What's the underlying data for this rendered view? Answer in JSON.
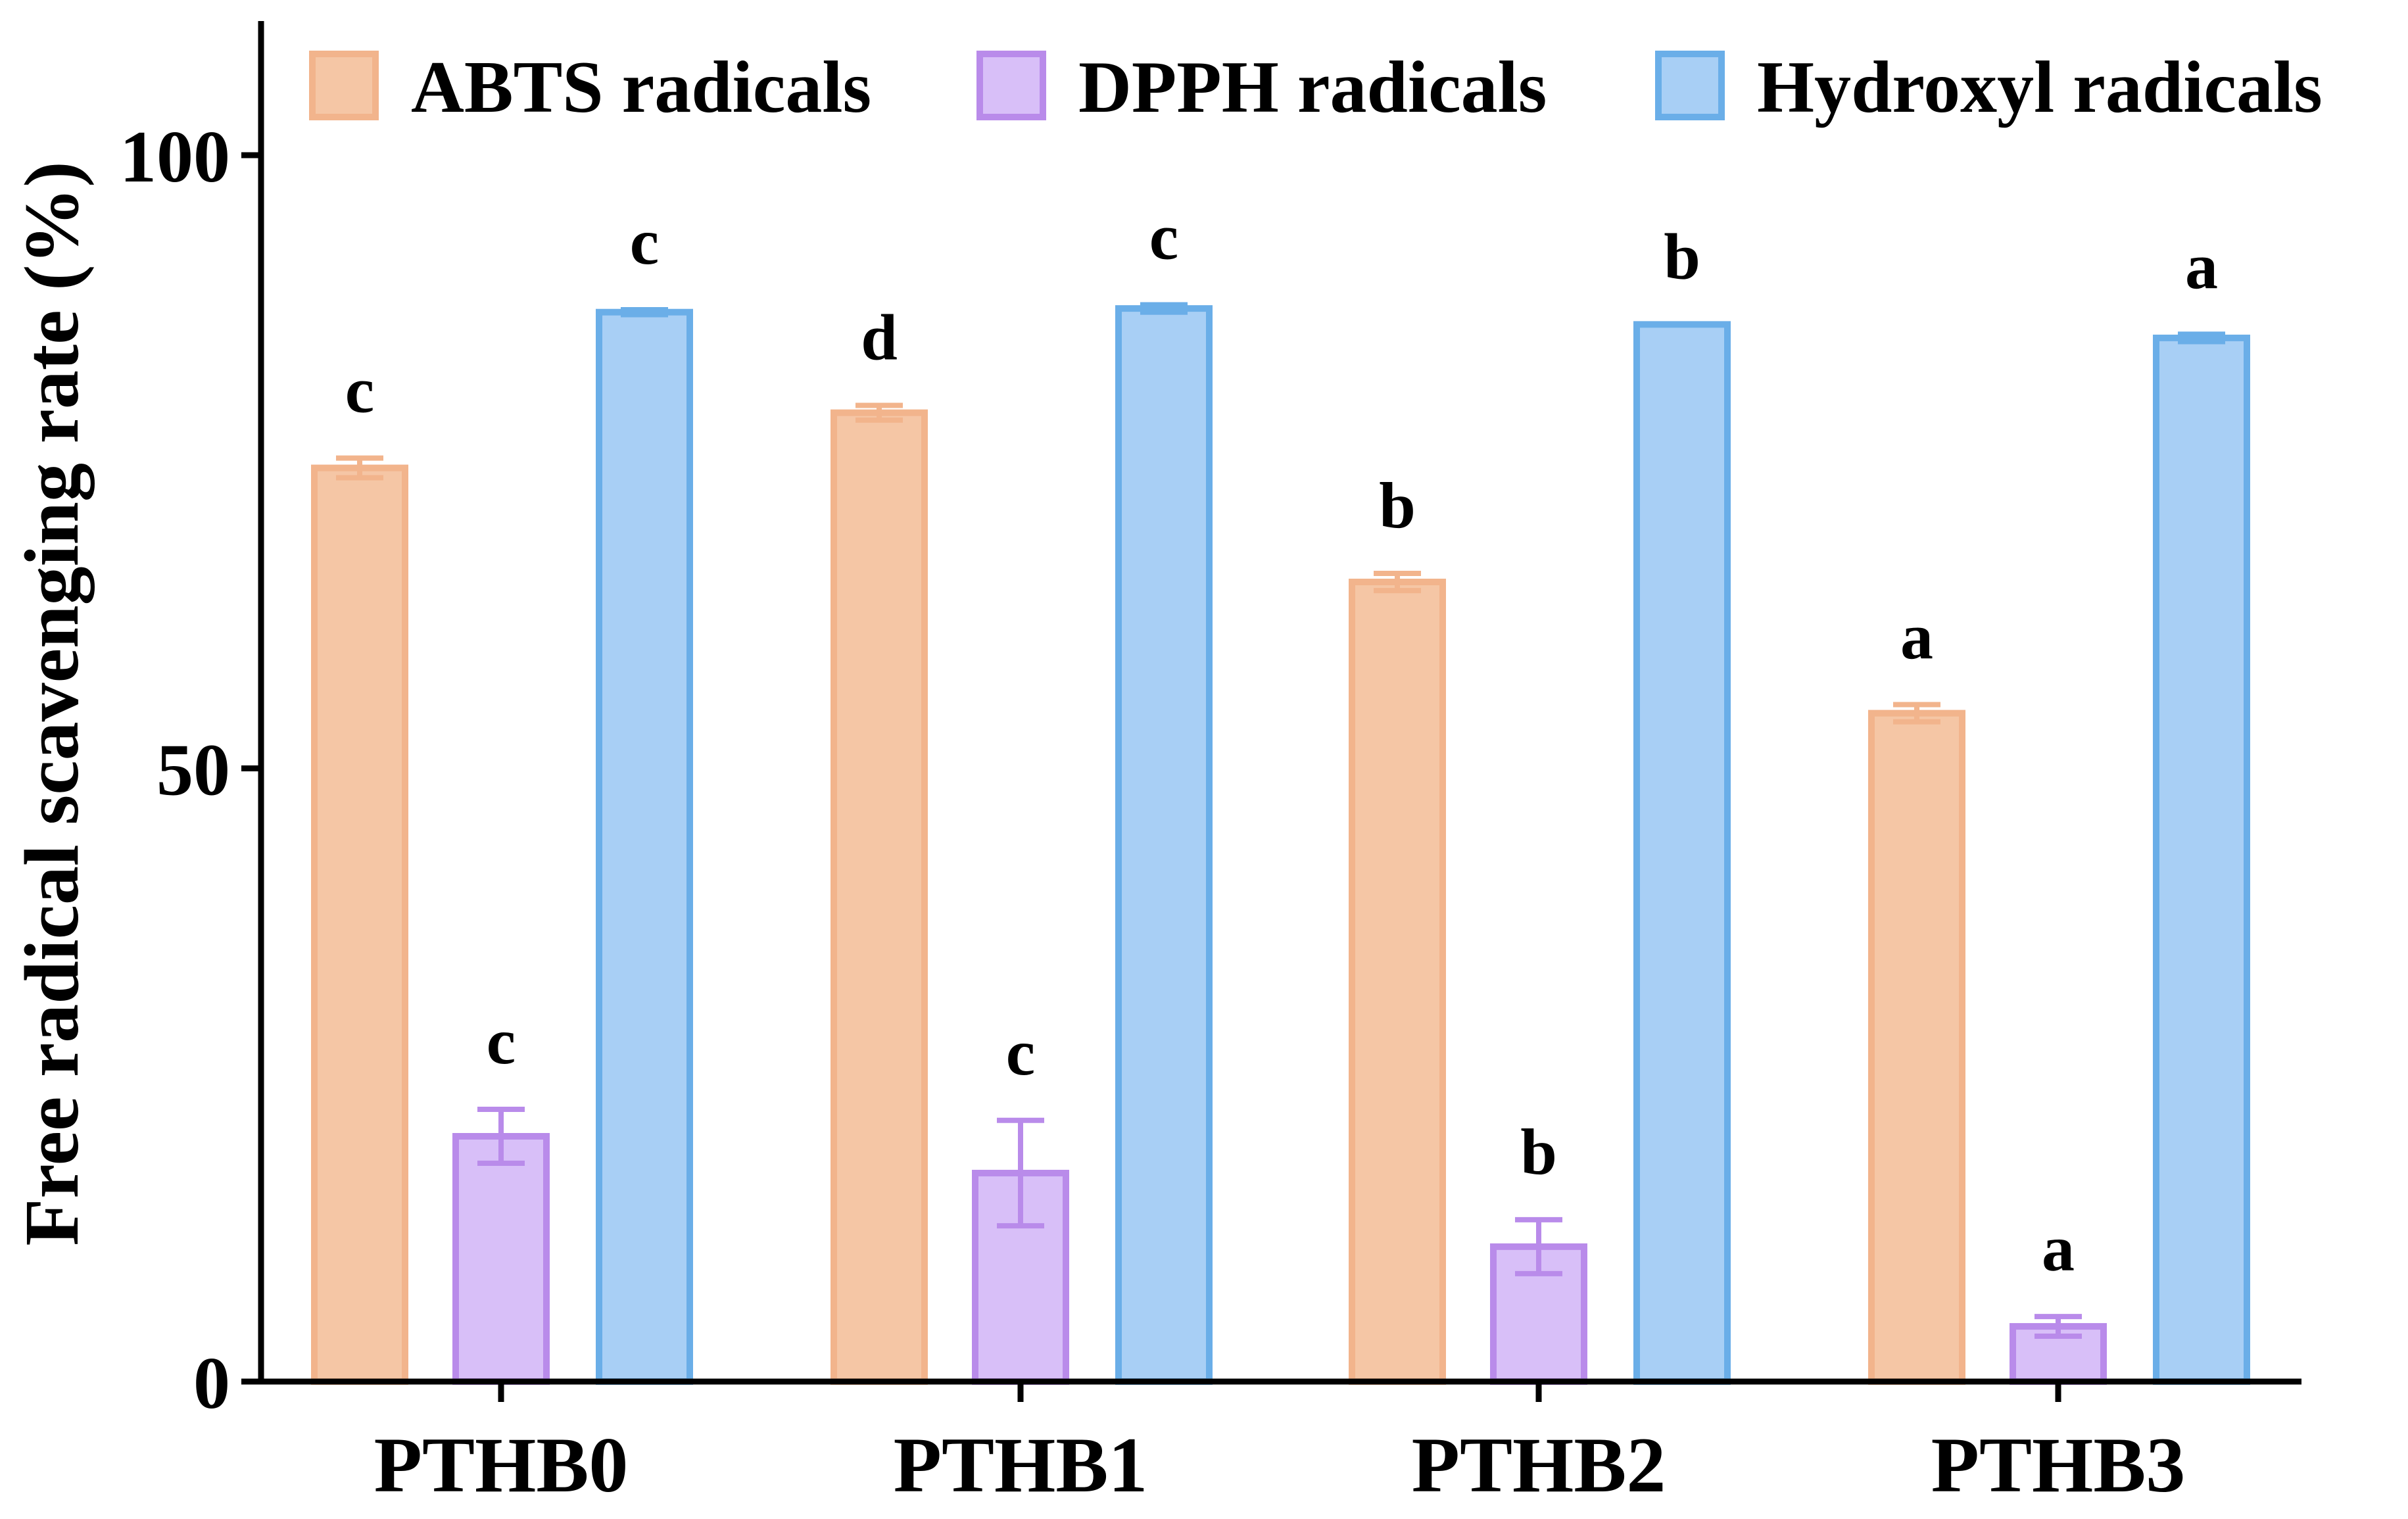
{
  "chart_data": {
    "type": "bar",
    "title": "",
    "xlabel": "",
    "ylabel": "Free radical scavenging rate (%)",
    "ylim": [
      0,
      110
    ],
    "yticks": [
      0,
      50,
      100
    ],
    "grid": false,
    "legend_position": "top",
    "categories": [
      "PTHB0",
      "PTHB1",
      "PTHB2",
      "PTHB3"
    ],
    "series": [
      {
        "name": "ABTS radicals",
        "fill": "#F5C6A5",
        "stroke": "#F2B48C",
        "values": [
          74.5,
          79,
          65.2,
          54.5
        ],
        "errors": [
          0.8,
          0.6,
          0.7,
          0.7
        ],
        "letters": [
          "c",
          "d",
          "b",
          "a"
        ]
      },
      {
        "name": "DPPH radicals",
        "fill": "#D8BFF8",
        "stroke": "#B98BEA",
        "values": [
          20,
          17,
          11,
          4.5
        ],
        "errors": [
          2.2,
          4.3,
          2.2,
          0.8
        ],
        "letters": [
          "c",
          "c",
          "b",
          "a"
        ]
      },
      {
        "name": "Hydroxyl radicals",
        "fill": "#A8CFF5",
        "stroke": "#6AAEE8",
        "values": [
          87.2,
          87.5,
          86.2,
          85.1
        ],
        "errors": [
          0.2,
          0.3,
          0.0,
          0.3
        ],
        "letters": [
          "c",
          "c",
          "b",
          "a"
        ]
      }
    ]
  }
}
